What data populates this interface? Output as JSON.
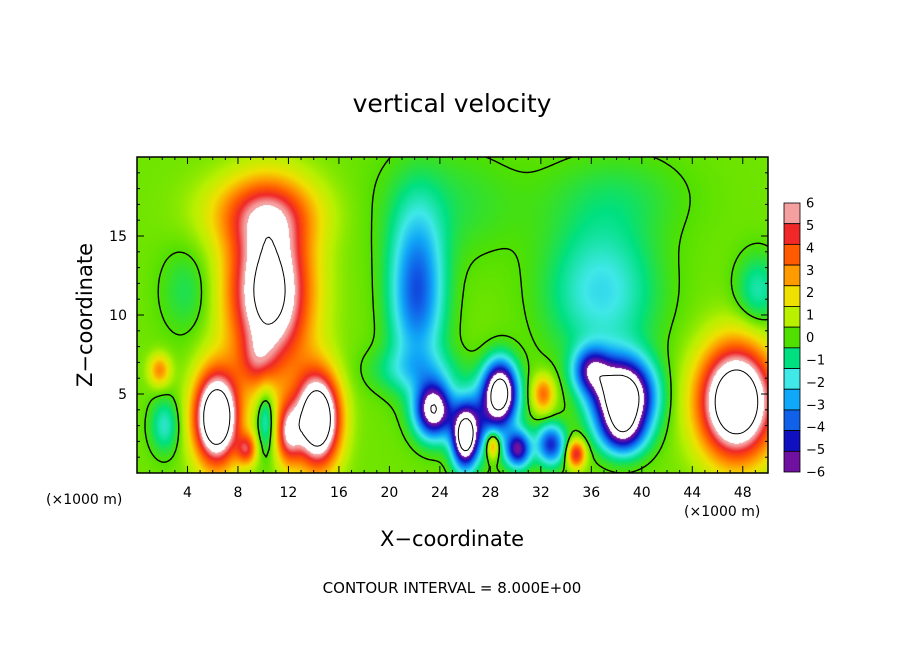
{
  "chart_data": {
    "type": "heatmap",
    "title": "vertical velocity",
    "xlabel": "X−coordinate",
    "ylabel": "Z−coordinate",
    "x_unit_label": "(×1000 m)",
    "x_unit_label_right": "(×1000 m)",
    "xlim": [
      0,
      50
    ],
    "ylim": [
      0,
      20
    ],
    "x_ticks": [
      4,
      8,
      12,
      16,
      20,
      24,
      28,
      32,
      36,
      40,
      44,
      48
    ],
    "x_tick_labels": [
      "4",
      "8",
      "12",
      "16",
      "20",
      "24",
      "28",
      "32",
      "36",
      "40",
      "44",
      "48"
    ],
    "y_ticks": [
      5,
      10,
      15
    ],
    "y_tick_labels": [
      "5",
      "10",
      "15"
    ],
    "footer": "CONTOUR INTERVAL = 8.000E+00",
    "colorbar": {
      "levels": [
        6,
        5,
        4,
        3,
        2,
        1,
        0,
        -1,
        -2,
        -3,
        -4,
        -5,
        -6
      ],
      "labels": [
        "6",
        "5",
        "4",
        "3",
        "2",
        "1",
        "0",
        "−1",
        "−2",
        "−3",
        "−4",
        "−5",
        "−6"
      ],
      "colors": [
        "#f4a0a0",
        "#f02828",
        "#ff5a00",
        "#ff9a00",
        "#f0e000",
        "#b8f000",
        "#50e000",
        "#00e080",
        "#40e8e8",
        "#10a8f8",
        "#1060e8",
        "#1010c0",
        "#7010a0"
      ]
    },
    "background_value": 0.3,
    "features": [
      {
        "x": 10.5,
        "z": 11.5,
        "sx": 2.2,
        "sz": 3.5,
        "amp": 9.0
      },
      {
        "x": 10.0,
        "z": 16.5,
        "sx": 3.0,
        "sz": 1.6,
        "amp": 3.5
      },
      {
        "x": 6.3,
        "z": 3.5,
        "sx": 1.2,
        "sz": 2.0,
        "amp": 11.0
      },
      {
        "x": 14.3,
        "z": 3.4,
        "sx": 1.2,
        "sz": 2.0,
        "amp": 11.0
      },
      {
        "x": 9.5,
        "z": 7.0,
        "sx": 1.0,
        "sz": 1.2,
        "amp": 2.0
      },
      {
        "x": 12.0,
        "z": 2.5,
        "sx": 0.7,
        "sz": 1.4,
        "amp": 5.0
      },
      {
        "x": 8.7,
        "z": 1.5,
        "sx": 0.55,
        "sz": 0.7,
        "amp": 4.0
      },
      {
        "x": 1.8,
        "z": 6.5,
        "sx": 0.6,
        "sz": 0.7,
        "amp": 3.0
      },
      {
        "x": 10.2,
        "z": 3.5,
        "sx": 0.5,
        "sz": 1.5,
        "amp": -2.5
      },
      {
        "x": 2.2,
        "z": 3.0,
        "sx": 0.8,
        "sz": 1.2,
        "amp": -2.0
      },
      {
        "x": 4.0,
        "z": 11.5,
        "sx": 1.5,
        "sz": 2.0,
        "amp": -1.0
      },
      {
        "x": 22.2,
        "z": 11.5,
        "sx": 1.5,
        "sz": 3.5,
        "amp": -4.5
      },
      {
        "x": 22.0,
        "z": 6.5,
        "sx": 2.5,
        "sz": 1.0,
        "amp": -1.5
      },
      {
        "x": 23.5,
        "z": 4.0,
        "sx": 1.0,
        "sz": 1.2,
        "amp": -8.0
      },
      {
        "x": 26.0,
        "z": 2.2,
        "sx": 0.7,
        "sz": 1.3,
        "amp": -9.0
      },
      {
        "x": 28.8,
        "z": 5.2,
        "sx": 0.9,
        "sz": 1.3,
        "amp": -9.0
      },
      {
        "x": 27.5,
        "z": 3.5,
        "sx": 1.6,
        "sz": 1.5,
        "amp": -3.5
      },
      {
        "x": 30.2,
        "z": 1.5,
        "sx": 0.7,
        "sz": 0.8,
        "amp": -6.0
      },
      {
        "x": 32.8,
        "z": 1.8,
        "sx": 0.8,
        "sz": 0.9,
        "amp": -5.0
      },
      {
        "x": 28.2,
        "z": 1.8,
        "sx": 0.4,
        "sz": 0.6,
        "amp": 4.0
      },
      {
        "x": 32.2,
        "z": 5.0,
        "sx": 0.6,
        "sz": 0.8,
        "amp": 3.5
      },
      {
        "x": 34.8,
        "z": 1.2,
        "sx": 0.5,
        "sz": 0.6,
        "amp": 5.0
      },
      {
        "x": 36.8,
        "z": 11.5,
        "sx": 3.0,
        "sz": 3.0,
        "amp": -2.5
      },
      {
        "x": 38.5,
        "z": 4.8,
        "sx": 1.6,
        "sz": 1.6,
        "amp": -11.0
      },
      {
        "x": 38.5,
        "z": 2.5,
        "sx": 1.2,
        "sz": 1.0,
        "amp": -4.0
      },
      {
        "x": 36.0,
        "z": 6.5,
        "sx": 1.0,
        "sz": 1.0,
        "amp": -5.0
      },
      {
        "x": 47.5,
        "z": 4.5,
        "sx": 2.0,
        "sz": 2.4,
        "amp": 11.0
      },
      {
        "x": 49.2,
        "z": 11.5,
        "sx": 1.2,
        "sz": 1.6,
        "amp": -1.8
      },
      {
        "x": 24.5,
        "z": 17.0,
        "sx": 4.0,
        "sz": 2.5,
        "amp": -0.8
      },
      {
        "x": 38.0,
        "z": 17.5,
        "sx": 4.0,
        "sz": 2.0,
        "amp": -0.8
      }
    ]
  }
}
